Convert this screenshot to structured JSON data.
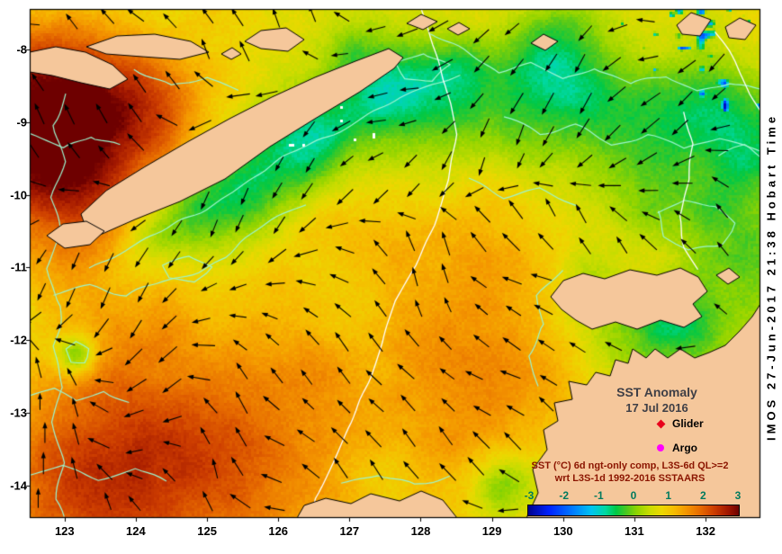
{
  "figure": {
    "title": "SST Anomaly",
    "date": "17 Jul 2016",
    "legend": {
      "glider": {
        "label": "Glider",
        "marker_color": "#e8001c"
      },
      "argo": {
        "label": "Argo",
        "marker_color": "#ff00ff"
      }
    },
    "caption": {
      "line1": "SST (°C) 6d ngt-only comp, L3S-6d QL>=2",
      "line2": "wrt L3S-1d 1992-2016 SSTAARS"
    },
    "credit": "IMOS 27-Jun-2017 21:38 Hobart Time"
  },
  "axes": {
    "x_ticks": [
      "123",
      "124",
      "125",
      "126",
      "127",
      "128",
      "129",
      "130",
      "131",
      "132"
    ],
    "y_ticks": [
      "-8",
      "-9",
      "-10",
      "-11",
      "-12",
      "-13",
      "-14"
    ],
    "x_range": [
      122.51,
      132.77
    ],
    "y_range": [
      -14.45,
      -7.44
    ]
  },
  "colorbar": {
    "tick_labels": [
      "-3",
      "-2",
      "-1",
      "0",
      "1",
      "2",
      "3"
    ],
    "min": -3,
    "max": 3,
    "stops": [
      {
        "v": -3.0,
        "color": "#00008c"
      },
      {
        "v": -2.4,
        "color": "#0022ff"
      },
      {
        "v": -1.7,
        "color": "#0080ff"
      },
      {
        "v": -1.2,
        "color": "#00c4f0"
      },
      {
        "v": -0.8,
        "color": "#00d8a0"
      },
      {
        "v": -0.5,
        "color": "#00c846"
      },
      {
        "v": -0.2,
        "color": "#4cc81e"
      },
      {
        "v": 0.1,
        "color": "#90d400"
      },
      {
        "v": 0.45,
        "color": "#c8dc00"
      },
      {
        "v": 0.8,
        "color": "#ecd800"
      },
      {
        "v": 1.15,
        "color": "#f6bc00"
      },
      {
        "v": 1.5,
        "color": "#f49600"
      },
      {
        "v": 1.9,
        "color": "#e66a00"
      },
      {
        "v": 2.3,
        "color": "#cc3c00"
      },
      {
        "v": 2.7,
        "color": "#a01600"
      },
      {
        "v": 3.0,
        "color": "#6e0000"
      }
    ]
  },
  "colors": {
    "land": "#f5c79b",
    "coastline": "#000000",
    "contour_cyan": "#9cf5cf",
    "contour_white": "#ffffff",
    "vector": "#000000",
    "title_text": "#3f3f46",
    "caption_text": "#8b1500",
    "colorbar_label": "#007a5e",
    "background": "#ffffff"
  },
  "chart_data": {
    "type": "heatmap",
    "title": "SST Anomaly",
    "subtitle": "17 Jul 2016",
    "units": "°C",
    "value_range": [
      -3,
      3
    ],
    "x_ticks": [
      123,
      124,
      125,
      126,
      127,
      128,
      129,
      130,
      131,
      132
    ],
    "y_ticks": [
      -8,
      -9,
      -10,
      -11,
      -12,
      -13,
      -14
    ],
    "x_range": [
      122.5,
      132.8
    ],
    "y_range": [
      -14.5,
      -7.4
    ],
    "colorbar_ticks": [
      -3,
      -2,
      -1,
      0,
      1,
      2,
      3
    ],
    "legend_entries": [
      "Glider",
      "Argo"
    ],
    "annotations": [
      "SST (°C) 6d ngt-only comp, L3S-6d QL>=2",
      "wrt L3S-1d 1992-2016 SSTAARS",
      "IMOS 27-Jun-2017 21:38 Hobart Time"
    ]
  }
}
